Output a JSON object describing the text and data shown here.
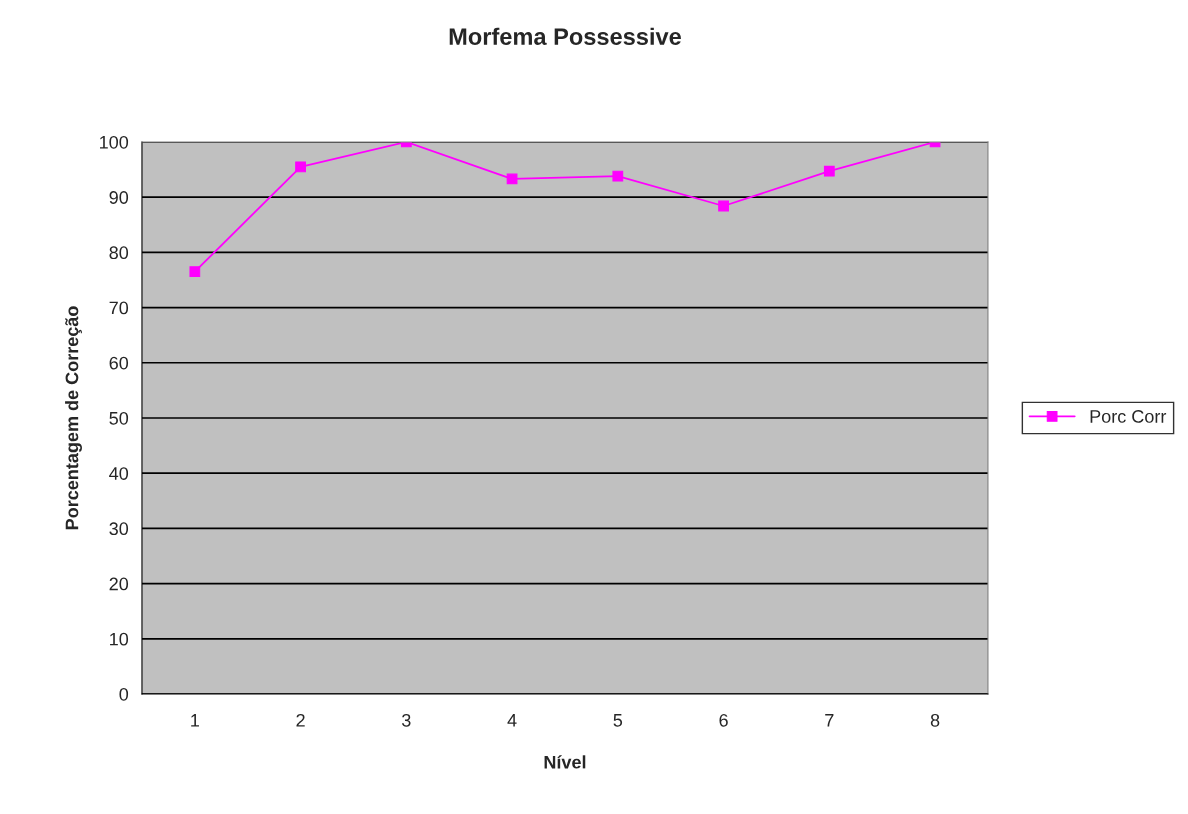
{
  "chart_data": {
    "type": "line",
    "title": "Morfema Possessive",
    "xlabel": "Nível",
    "ylabel": "Porcentagem de Correção",
    "categories": [
      "1",
      "2",
      "3",
      "4",
      "5",
      "6",
      "7",
      "8"
    ],
    "series": [
      {
        "name": "Porc Corr",
        "color": "#ff00ff",
        "values": [
          76.5,
          95.5,
          100,
          93.3,
          93.8,
          88.4,
          94.7,
          100
        ]
      }
    ],
    "ylim": [
      0,
      100
    ],
    "yticks": [
      0,
      10,
      20,
      30,
      40,
      50,
      60,
      70,
      80,
      90,
      100
    ],
    "grid": "y",
    "legend": "right",
    "marker": "square",
    "line_style": "solid"
  }
}
